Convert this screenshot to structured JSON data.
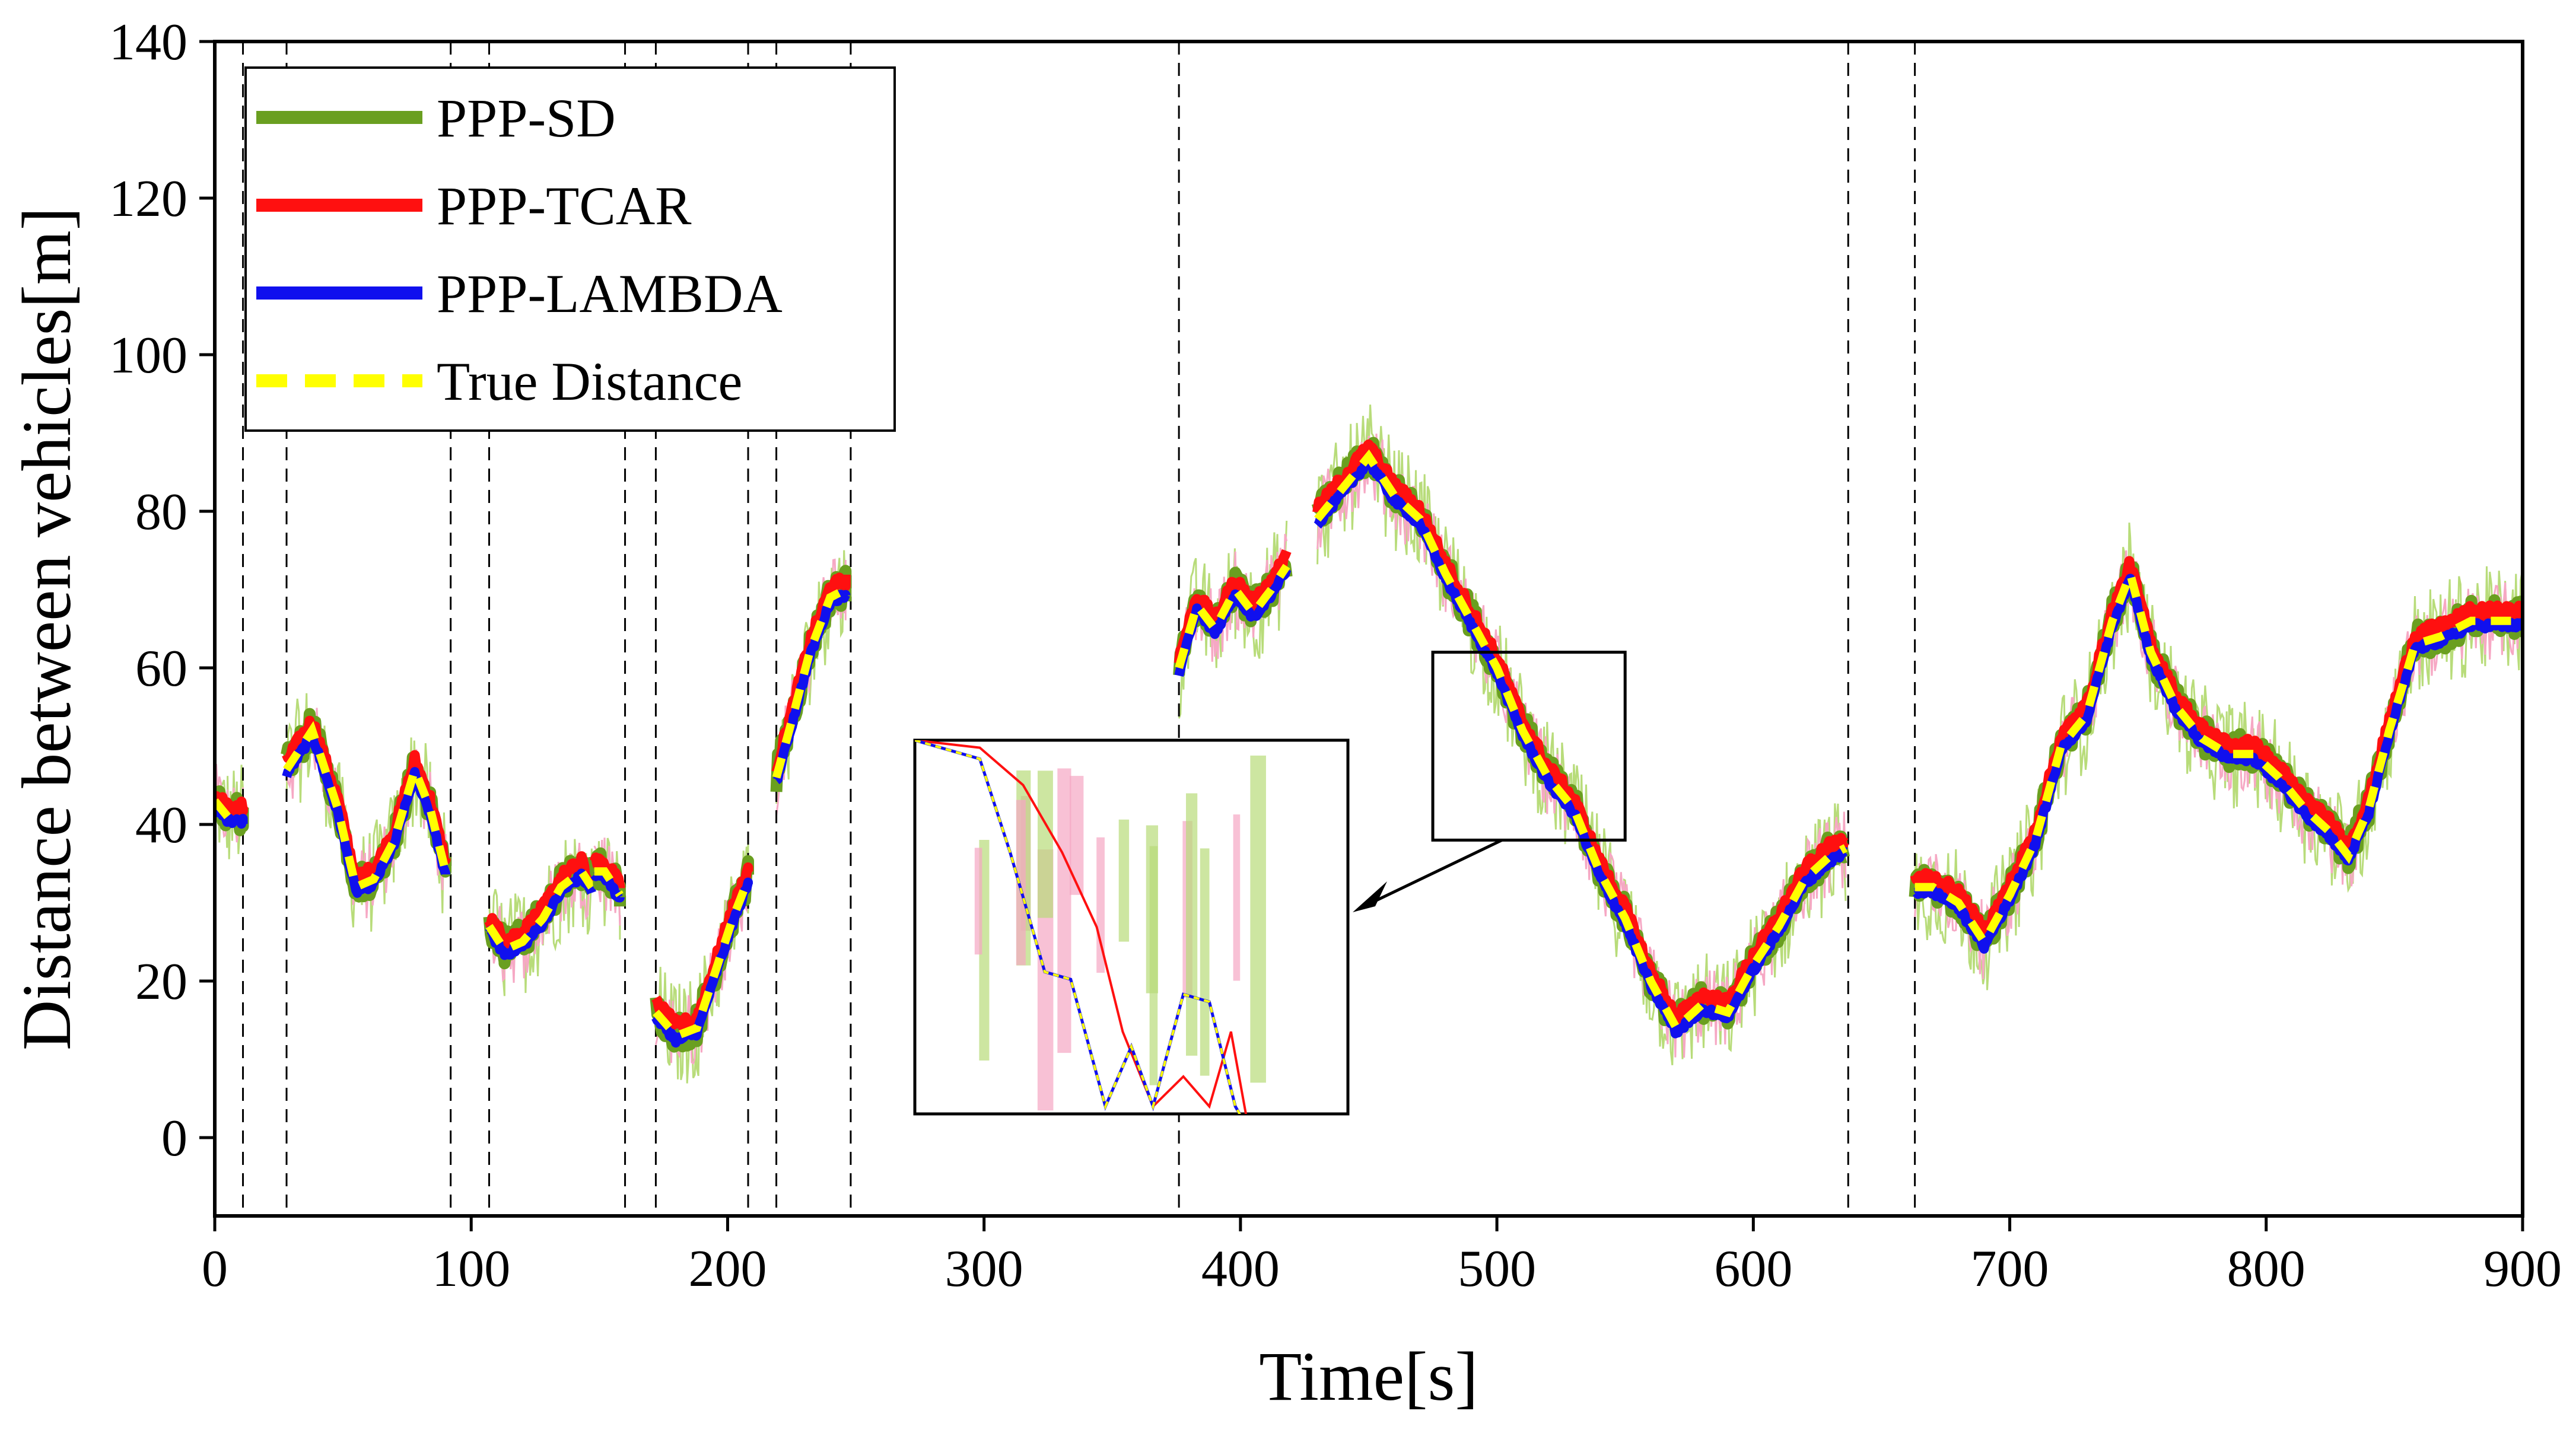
{
  "chart_data": {
    "type": "line",
    "title": "",
    "xlabel": "Time[s]",
    "ylabel": "Distance between vehicles[m]",
    "xlim": [
      0,
      900
    ],
    "ylim": [
      -10,
      140
    ],
    "xticks": [
      "0",
      "100",
      "200",
      "300",
      "400",
      "500",
      "600",
      "700",
      "800",
      "900"
    ],
    "yticks": [
      "0",
      "20",
      "40",
      "60",
      "80",
      "100",
      "120",
      "140"
    ],
    "xtick_values": [
      0,
      100,
      200,
      300,
      400,
      500,
      600,
      700,
      800,
      900
    ],
    "ytick_values": [
      0,
      20,
      40,
      60,
      80,
      100,
      120,
      140
    ],
    "legend_position": "top-left",
    "colors": {
      "ppp_sd": "#6a9f20",
      "ppp_sd_noise": "#b8dc7a",
      "ppp_tcar": "#ff1010",
      "ppp_tcar_noise": "#f6a8c4",
      "ppp_lambda": "#1010ee",
      "true_distance": "#ffff00",
      "axis": "#000000"
    },
    "series": [
      {
        "name": "PPP-SD",
        "key": "ppp_sd"
      },
      {
        "name": "PPP-TCAR",
        "key": "ppp_tcar"
      },
      {
        "name": "PPP-LAMBDA",
        "key": "ppp_lambda"
      },
      {
        "name": "True Distance",
        "key": "true_distance"
      }
    ],
    "segments": [
      {
        "t": [
          0,
          5,
          11
        ],
        "d": [
          43,
          41,
          41
        ]
      },
      {
        "t": [
          28,
          38,
          48,
          55,
          62,
          70,
          78,
          84,
          90
        ],
        "d": [
          47,
          52,
          42,
          32,
          33,
          38,
          47,
          42,
          34
        ]
      },
      {
        "t": [
          107,
          113,
          120,
          128,
          135,
          143,
          147
        ],
        "d": [
          27,
          24,
          25,
          28,
          32,
          34,
          32
        ]
      },
      {
        "t": [
          148,
          152,
          158
        ],
        "d": [
          34,
          34,
          31
        ]
      },
      {
        "t": [
          172,
          180,
          188,
          196,
          202,
          208
        ],
        "d": [
          16,
          13,
          14,
          22,
          28,
          33
        ]
      },
      {
        "t": [
          219,
          224,
          232,
          240,
          246
        ],
        "d": [
          46,
          52,
          62,
          69,
          70
        ]
      },
      {
        "t": [
          376,
          383,
          390,
          398,
          405,
          412,
          418
        ],
        "d": [
          60,
          68,
          65,
          70,
          67,
          70,
          73
        ]
      },
      {
        "t": [
          430,
          440,
          450,
          460,
          470,
          480,
          490,
          500,
          510,
          520,
          530,
          540,
          550,
          560,
          570,
          580,
          590,
          600,
          610,
          620,
          630,
          636
        ],
        "d": [
          79,
          83,
          87,
          82,
          79,
          72,
          66,
          60,
          52,
          46,
          42,
          34,
          28,
          20,
          14,
          17,
          16,
          22,
          27,
          33,
          36,
          37
        ]
      },
      {
        "t": [
          663,
          670,
          680,
          690,
          700,
          710,
          720,
          730,
          740,
          747,
          755,
          765,
          775,
          785,
          795,
          805,
          815,
          825,
          832,
          840,
          848,
          858,
          868,
          880,
          900
        ],
        "d": [
          32,
          32,
          30,
          25,
          31,
          38,
          50,
          54,
          66,
          72,
          62,
          55,
          51,
          49,
          49,
          46,
          42,
          39,
          36,
          42,
          52,
          63,
          64,
          66,
          66
        ]
      }
    ],
    "gap_markers": [
      11,
      28,
      92,
      107,
      160,
      172,
      208,
      219,
      248,
      376,
      637,
      663
    ],
    "inset": {
      "source_x": [
        475,
        550
      ],
      "source_y": [
        38,
        62
      ],
      "arrow": "from source box to inset"
    }
  }
}
